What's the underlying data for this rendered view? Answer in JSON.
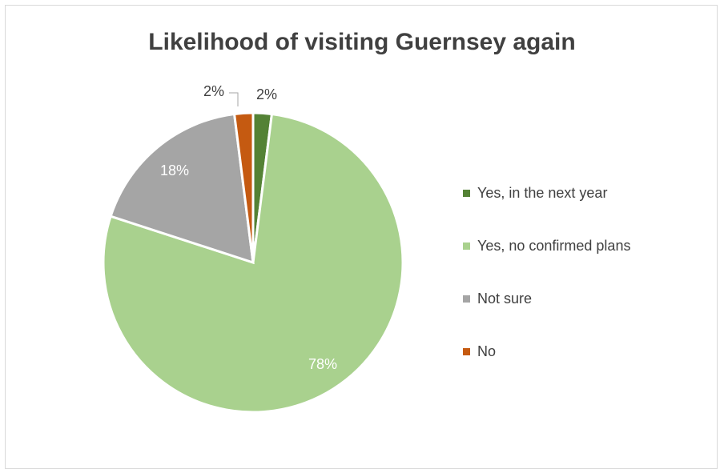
{
  "chart_data": {
    "type": "pie",
    "title": "Likelihood of visiting Guernsey again",
    "categories": [
      "Yes, in the next year",
      "Yes, no confirmed plans",
      "Not sure",
      "No"
    ],
    "values": [
      2,
      78,
      18,
      2
    ],
    "data_labels": [
      "2%",
      "78%",
      "18%",
      "2%"
    ],
    "colors": [
      "#548235",
      "#a9d18e",
      "#a5a5a5",
      "#c55a11"
    ],
    "legend_position": "right"
  }
}
